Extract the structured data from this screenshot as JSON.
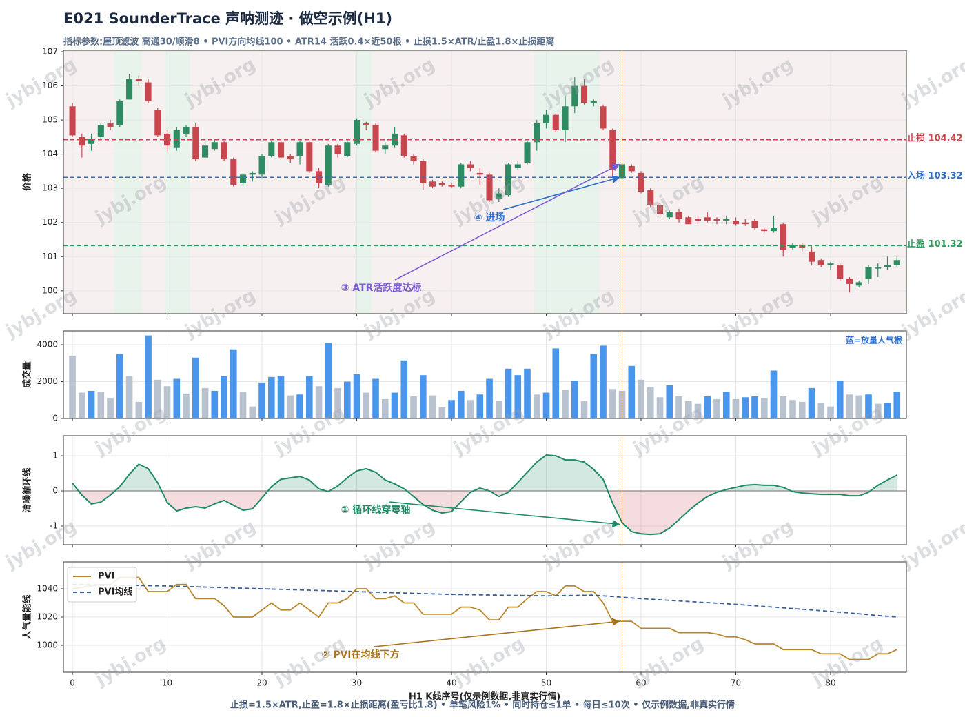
{
  "watermark": "jybj.org",
  "chart_data": [
    {
      "type": "candlestick",
      "title": "E021 SounderTrace 声呐测迹 · 做空示例(H1)",
      "subtitle": "指标参数:屋顶滤波 高通30/顺滑8 • PVI方向均线100 • ATR14 活跃0.4×近50根 • 止损1.5×ATR/止盈1.8×止损距离",
      "ylabel": "价格",
      "up_color": "#2e8b62",
      "down_color": "#c8474f",
      "ylim": [
        99.33,
        107.04
      ],
      "yticks": [
        100,
        101,
        102,
        103,
        104,
        105,
        106,
        107
      ],
      "grid": true,
      "open": [
        105.4,
        104.5,
        104.3,
        104.5,
        104.9,
        104.85,
        105.6,
        106.2,
        106.1,
        105.3,
        104.6,
        104.2,
        104.6,
        104.8,
        103.9,
        104.15,
        104.35,
        103.85,
        103.15,
        103.4,
        103.4,
        103.95,
        104.35,
        103.95,
        103.95,
        104.35,
        103.5,
        103.1,
        104.25,
        103.95,
        104.3,
        104.9,
        104.85,
        104.15,
        104.25,
        104.55,
        103.95,
        103.8,
        103.2,
        103.15,
        103.1,
        103.05,
        103.7,
        103.45,
        103.4,
        102.7,
        102.8,
        103.6,
        103.75,
        104.35,
        104.9,
        105.15,
        104.7,
        105.4,
        106.0,
        105.5,
        105.4,
        104.7,
        103.3,
        103.65,
        103.45,
        102.95,
        102.5,
        102.15,
        102.3,
        102.15,
        102.1,
        102.15,
        102.1,
        102.05,
        102.05,
        102.0,
        102.05,
        101.8,
        101.75,
        101.95,
        101.25,
        101.35,
        101.15,
        100.9,
        100.75,
        100.75,
        100.35,
        100.15,
        100.35,
        100.65,
        100.7,
        100.75
      ],
      "high": [
        105.5,
        104.6,
        104.6,
        104.9,
        105.0,
        105.6,
        106.35,
        106.3,
        106.2,
        105.35,
        104.7,
        104.8,
        104.85,
        104.9,
        104.45,
        104.45,
        104.4,
        103.9,
        103.45,
        103.5,
        104.0,
        104.4,
        104.4,
        104.0,
        104.4,
        104.4,
        103.6,
        104.3,
        104.3,
        104.4,
        105.05,
        104.95,
        104.9,
        104.35,
        104.8,
        104.6,
        104.0,
        103.85,
        103.25,
        103.2,
        103.15,
        103.75,
        103.8,
        103.6,
        103.45,
        103.0,
        103.75,
        103.8,
        104.4,
        105.0,
        105.3,
        105.2,
        105.7,
        106.25,
        106.2,
        105.6,
        105.45,
        104.75,
        103.75,
        103.7,
        103.5,
        103.0,
        102.55,
        102.35,
        102.4,
        102.2,
        102.2,
        102.3,
        102.15,
        102.2,
        102.15,
        102.1,
        102.1,
        101.85,
        102.2,
        102.0,
        101.4,
        101.4,
        101.3,
        100.95,
        100.85,
        100.8,
        100.4,
        100.3,
        100.75,
        100.8,
        101.0,
        101.0
      ],
      "low": [
        104.5,
        103.9,
        104.1,
        104.4,
        104.7,
        104.8,
        105.6,
        106.0,
        105.5,
        104.5,
        104.1,
        104.1,
        104.5,
        103.8,
        103.85,
        104.1,
        103.8,
        103.05,
        103.05,
        103.2,
        103.3,
        103.9,
        103.85,
        103.75,
        103.7,
        103.45,
        103.0,
        103.05,
        103.9,
        103.9,
        104.25,
        104.7,
        104.05,
        104.0,
        104.2,
        103.9,
        103.7,
        102.95,
        103.0,
        103.05,
        103.0,
        103.0,
        103.5,
        103.1,
        102.6,
        102.6,
        102.75,
        103.55,
        103.7,
        104.1,
        104.75,
        104.65,
        104.35,
        105.2,
        105.45,
        105.4,
        104.7,
        103.35,
        103.25,
        103.45,
        102.85,
        102.45,
        102.2,
        102.1,
        102.0,
        101.95,
        102.0,
        102.0,
        101.95,
        101.95,
        101.9,
        101.9,
        101.8,
        101.7,
        101.7,
        101.0,
        101.2,
        101.15,
        100.75,
        100.7,
        100.6,
        100.3,
        99.95,
        100.1,
        100.2,
        100.4,
        100.6,
        100.7
      ],
      "close": [
        104.55,
        104.25,
        104.45,
        104.85,
        104.8,
        105.55,
        106.2,
        106.15,
        105.55,
        104.55,
        104.25,
        104.7,
        104.8,
        103.85,
        104.25,
        104.35,
        103.85,
        103.1,
        103.4,
        103.45,
        103.95,
        104.35,
        103.9,
        103.85,
        104.35,
        103.5,
        103.15,
        104.25,
        104.0,
        104.35,
        105.0,
        104.85,
        104.1,
        104.25,
        104.6,
        103.95,
        103.8,
        103.15,
        103.05,
        103.1,
        103.05,
        103.7,
        103.6,
        103.4,
        102.65,
        102.85,
        103.7,
        103.7,
        104.35,
        104.9,
        105.15,
        104.7,
        105.4,
        106.0,
        105.5,
        105.55,
        104.75,
        103.55,
        103.7,
        103.5,
        102.9,
        102.5,
        102.25,
        102.3,
        102.1,
        101.95,
        102.05,
        102.05,
        102.05,
        102.1,
        101.95,
        101.95,
        101.85,
        101.75,
        101.85,
        101.2,
        101.35,
        101.25,
        100.85,
        100.75,
        100.8,
        100.35,
        100.2,
        100.25,
        100.7,
        100.7,
        100.75,
        100.9
      ],
      "active_bands": [
        [
          4.4,
          7.3
        ],
        [
          9.8,
          12.4
        ],
        [
          29.8,
          31.6
        ],
        [
          48.7,
          55.6
        ]
      ],
      "signal_x": 58,
      "levels": [
        {
          "label": "止损 104.42",
          "value": 104.42,
          "color": "#c8474f"
        },
        {
          "label": "入场 103.32",
          "value": 103.32,
          "color": "#2f6fcc"
        },
        {
          "label": "止盈 101.32",
          "value": 101.32,
          "color": "#2e9a5c"
        }
      ],
      "annotations": [
        {
          "text": "④ 进场",
          "x": 58,
          "y": 103.32,
          "color": "#2f6fcc"
        },
        {
          "text": "③ ATR活跃度达标",
          "x": 58,
          "y": 103.7,
          "color": "#7b5cd6"
        }
      ]
    },
    {
      "type": "bar",
      "ylabel": "成交量",
      "note": "蓝=放量人气根",
      "ylim": [
        0,
        4750
      ],
      "yticks": [
        0,
        2000,
        4000
      ],
      "grid": true,
      "values": [
        3400,
        1400,
        1500,
        1450,
        1100,
        3500,
        2300,
        900,
        4500,
        2100,
        1750,
        2150,
        1350,
        3300,
        1650,
        1500,
        2300,
        3750,
        1450,
        650,
        1950,
        2250,
        2300,
        1250,
        1300,
        2300,
        1750,
        4100,
        1650,
        2000,
        2400,
        1400,
        2150,
        1050,
        1400,
        3150,
        1200,
        2350,
        1250,
        600,
        1000,
        1500,
        1000,
        1300,
        2150,
        950,
        2700,
        2350,
        2700,
        1300,
        1400,
        3800,
        1550,
        2050,
        950,
        3500,
        3950,
        1600,
        1500,
        2850,
        2100,
        1700,
        1150,
        1800,
        1200,
        950,
        800,
        1200,
        1050,
        1450,
        1050,
        1150,
        1200,
        1100,
        2600,
        1200,
        1000,
        900,
        1650,
        850,
        650,
        2050,
        1300,
        1250,
        1300,
        800,
        850,
        1450
      ],
      "colors": [
        "#b9c3d0",
        "#b9c3d0",
        "#4a96ec",
        "#b9c3d0",
        "#b9c3d0",
        "#4a96ec",
        "#b9c3d0",
        "#b9c3d0",
        "#4a96ec",
        "#b9c3d0",
        "#b9c3d0",
        "#4a96ec",
        "#b9c3d0",
        "#4a96ec",
        "#b9c3d0",
        "#4a96ec",
        "#4a96ec",
        "#4a96ec",
        "#b9c3d0",
        "#b9c3d0",
        "#4a96ec",
        "#4a96ec",
        "#4a96ec",
        "#b9c3d0",
        "#4a96ec",
        "#4a96ec",
        "#b9c3d0",
        "#4a96ec",
        "#b9c3d0",
        "#4a96ec",
        "#4a96ec",
        "#b9c3d0",
        "#4a96ec",
        "#b9c3d0",
        "#4a96ec",
        "#4a96ec",
        "#b9c3d0",
        "#4a96ec",
        "#b9c3d0",
        "#b9c3d0",
        "#4a96ec",
        "#4a96ec",
        "#b9c3d0",
        "#4a96ec",
        "#4a96ec",
        "#b9c3d0",
        "#4a96ec",
        "#4a96ec",
        "#4a96ec",
        "#b9c3d0",
        "#4a96ec",
        "#4a96ec",
        "#b9c3d0",
        "#4a96ec",
        "#b9c3d0",
        "#4a96ec",
        "#4a96ec",
        "#b9c3d0",
        "#b9c3d0",
        "#4a96ec",
        "#b9c3d0",
        "#b9c3d0",
        "#b9c3d0",
        "#4a96ec",
        "#b9c3d0",
        "#b9c3d0",
        "#b9c3d0",
        "#4a96ec",
        "#b9c3d0",
        "#4a96ec",
        "#b9c3d0",
        "#4a96ec",
        "#4a96ec",
        "#b9c3d0",
        "#4a96ec",
        "#b9c3d0",
        "#b9c3d0",
        "#b9c3d0",
        "#4a96ec",
        "#b9c3d0",
        "#b9c3d0",
        "#4a96ec",
        "#b9c3d0",
        "#b9c3d0",
        "#4a96ec",
        "#b9c3d0",
        "#4a96ec",
        "#4a96ec"
      ]
    },
    {
      "type": "area_line",
      "ylabel": "清噪循环线",
      "color": "#1f8a66",
      "pos_fill": "#1f8a66",
      "neg_fill": "#d9727e",
      "ylim": [
        -1.53,
        1.57
      ],
      "yticks": [
        -1,
        0,
        1
      ],
      "grid": true,
      "values": [
        0.22,
        -0.12,
        -0.37,
        -0.32,
        -0.12,
        0.12,
        0.47,
        0.76,
        0.63,
        0.23,
        -0.33,
        -0.57,
        -0.49,
        -0.45,
        -0.49,
        -0.37,
        -0.27,
        -0.41,
        -0.55,
        -0.51,
        -0.2,
        0.12,
        0.33,
        0.37,
        0.41,
        0.31,
        0.06,
        -0.02,
        0.14,
        0.37,
        0.57,
        0.63,
        0.53,
        0.31,
        0.2,
        0.06,
        -0.16,
        -0.39,
        -0.55,
        -0.63,
        -0.59,
        -0.31,
        -0.04,
        0.08,
        0.0,
        -0.16,
        -0.04,
        0.24,
        0.53,
        0.82,
        1.02,
        1.0,
        0.88,
        0.88,
        0.82,
        0.61,
        0.33,
        -0.35,
        -0.9,
        -1.16,
        -1.22,
        -1.24,
        -1.22,
        -1.06,
        -0.82,
        -0.57,
        -0.35,
        -0.16,
        -0.04,
        0.04,
        0.1,
        0.16,
        0.18,
        0.16,
        0.16,
        0.1,
        -0.02,
        -0.06,
        -0.08,
        -0.1,
        -0.1,
        -0.1,
        -0.14,
        -0.14,
        -0.04,
        0.16,
        0.31,
        0.45
      ],
      "annotations": [
        {
          "text": "① 循环线穿零轴",
          "x": 58,
          "y": -0.95,
          "color": "#1f8a66"
        }
      ]
    },
    {
      "type": "line",
      "ylabel": "人气量能线",
      "xlabel": "H1 K线序号(仅示例数据,非真实行情)",
      "footer": "止损=1.5×ATR,止盈=1.8×止损距离(盈亏比1.8) • 单笔风险1% • 同时持仓≤1单 • 每日≤10次 • 仅示例数据,非真实行情",
      "ylim": [
        981,
        1059
      ],
      "yticks": [
        1000,
        1020,
        1040
      ],
      "xlim": [
        -0.95,
        88
      ],
      "xticks": [
        0,
        10,
        20,
        30,
        40,
        50,
        60,
        70,
        80
      ],
      "grid": true,
      "legend": "upper left",
      "series": [
        {
          "name": "PVI",
          "color": "#b8862b",
          "dashed": false,
          "values": [
            1040,
            1041,
            1042,
            1043,
            1043,
            1048,
            1048,
            1048,
            1038,
            1038,
            1038,
            1043,
            1043,
            1033,
            1033,
            1033,
            1028,
            1020,
            1020,
            1020,
            1025,
            1030,
            1025,
            1025,
            1030,
            1025,
            1020,
            1030,
            1030,
            1033,
            1040,
            1040,
            1033,
            1033,
            1035,
            1030,
            1030,
            1022,
            1022,
            1022,
            1022,
            1027,
            1027,
            1025,
            1018,
            1018,
            1027,
            1027,
            1033,
            1038,
            1038,
            1035,
            1042,
            1042,
            1038,
            1038,
            1030,
            1017,
            1017,
            1017,
            1012,
            1012,
            1012,
            1012,
            1009,
            1009,
            1009,
            1009,
            1008,
            1006,
            1006,
            1004,
            1001,
            1001,
            1001,
            997,
            997,
            997,
            997,
            994,
            994,
            994,
            990,
            990,
            990,
            994,
            994,
            997
          ]
        },
        {
          "name": "PVI均线",
          "color": "#3a5f9a",
          "dashed": true,
          "values": [
            1043,
            1042.9,
            1042.8,
            1042.7,
            1042.6,
            1042.5,
            1042.4,
            1042.3,
            1042.2,
            1042.1,
            1042,
            1041.8,
            1041.6,
            1041.4,
            1041.2,
            1041,
            1040.8,
            1040.6,
            1040.4,
            1040.2,
            1040,
            1039.8,
            1039.6,
            1039.4,
            1039.2,
            1039,
            1038.8,
            1038.6,
            1038.4,
            1038.2,
            1038,
            1037.8,
            1037.6,
            1037.4,
            1037.2,
            1037,
            1036.8,
            1036.6,
            1036.4,
            1036.2,
            1036,
            1035.9,
            1035.8,
            1035.7,
            1035.6,
            1035.5,
            1035.4,
            1035.3,
            1035.2,
            1035.1,
            1035,
            1035.1,
            1035.2,
            1035.3,
            1035.4,
            1035.5,
            1035,
            1034.5,
            1034,
            1033.5,
            1033,
            1032.6,
            1032.2,
            1031.8,
            1031.4,
            1031,
            1030.6,
            1030.2,
            1029.8,
            1029.4,
            1029,
            1028.5,
            1028,
            1027.5,
            1027,
            1026.5,
            1026,
            1025.5,
            1025,
            1024.5,
            1024,
            1023.4,
            1022.9,
            1022.3,
            1021.7,
            1021.1,
            1020.6,
            1020
          ]
        }
      ],
      "annotations": [
        {
          "text": "② PVI在均线下方",
          "x": 58,
          "y": 1017,
          "color": "#a8761d"
        }
      ]
    }
  ]
}
